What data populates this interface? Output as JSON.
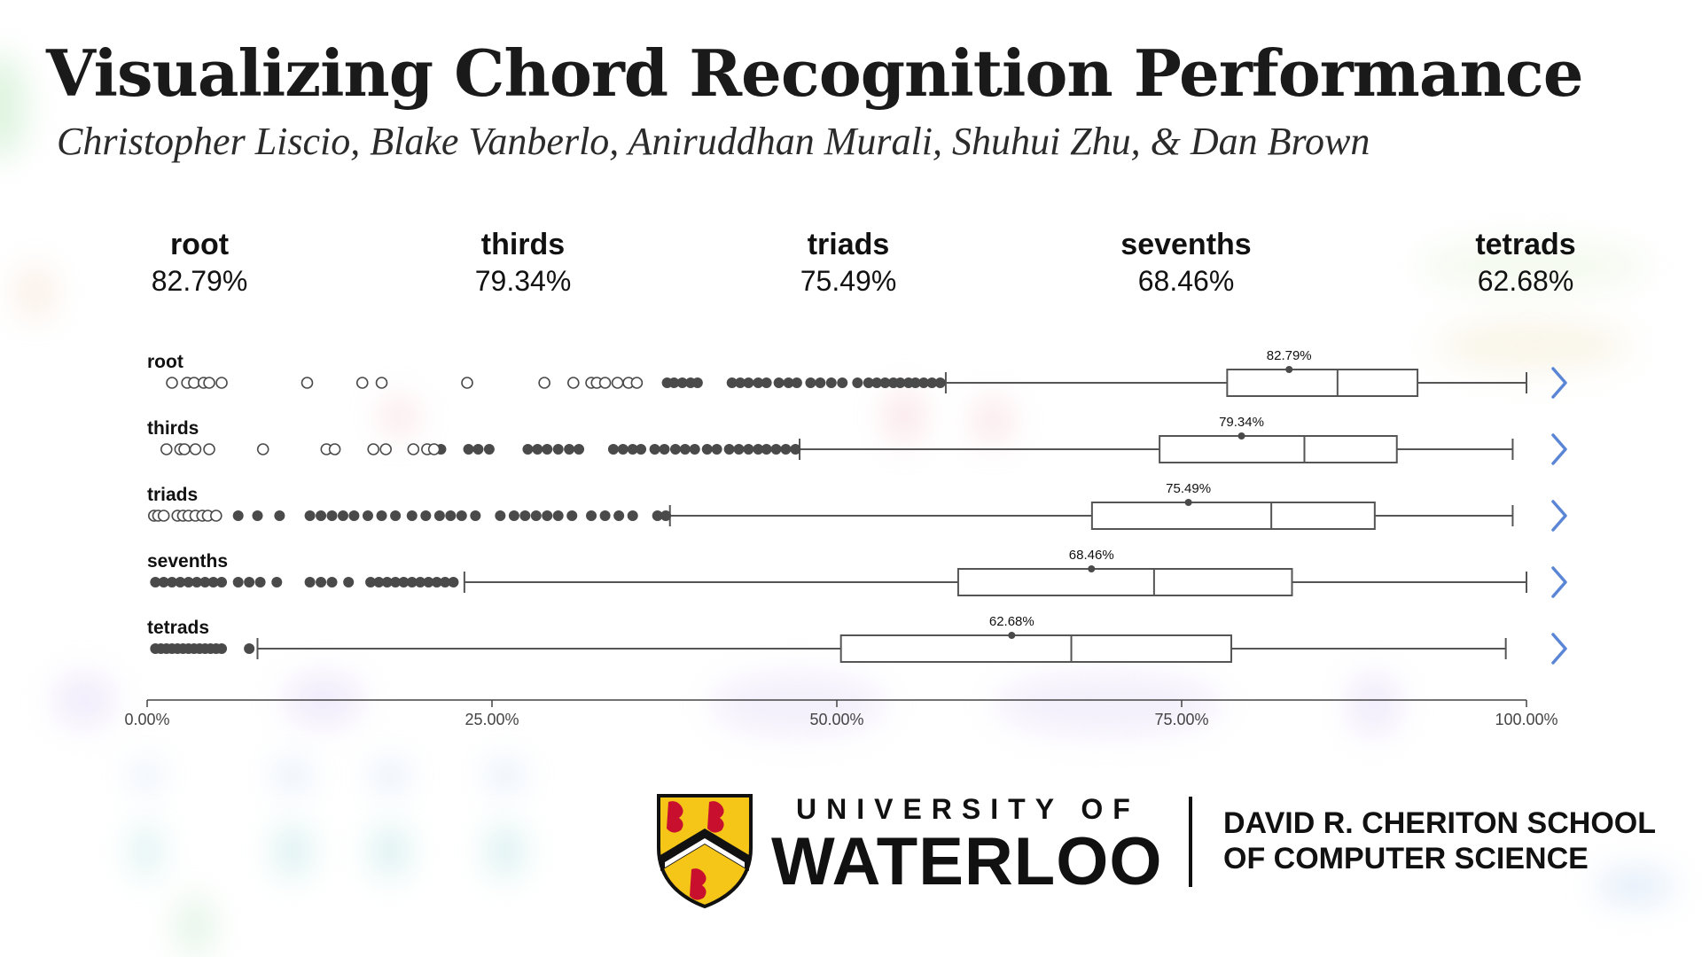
{
  "header": {
    "title": "Visualizing Chord Recognition Performance",
    "authors": "Christopher Liscio, Blake Vanberlo, Aniruddhan Murali, Shuhui Zhu, & Dan Brown"
  },
  "summary_metrics": [
    {
      "name": "root",
      "value": "82.79%"
    },
    {
      "name": "thirds",
      "value": "79.34%"
    },
    {
      "name": "triads",
      "value": "75.49%"
    },
    {
      "name": "sevenths",
      "value": "68.46%"
    },
    {
      "name": "tetrads",
      "value": "62.68%"
    }
  ],
  "chart_data": {
    "type": "boxplot",
    "orientation": "horizontal",
    "xlim": [
      0,
      100
    ],
    "x_ticks": [
      0,
      25,
      50,
      75,
      100
    ],
    "x_tick_labels": [
      "0.00%",
      "25.00%",
      "50.00%",
      "75.00%",
      "100.00%"
    ],
    "series": [
      {
        "name": "root",
        "mean": 82.79,
        "mean_label": "82.79%",
        "q1": 78.3,
        "median": 86.3,
        "q3": 92.1,
        "whisker_low": 57.9,
        "whisker_high": 100,
        "outliers_hollow": [
          1.8,
          2.9,
          3.4,
          4.1,
          4.5,
          5.4,
          11.6,
          15.6,
          17.0,
          23.2,
          28.8,
          30.9,
          32.2,
          32.6,
          33.2,
          34.1,
          34.9,
          35.5
        ],
        "outliers_filled": [
          37.7,
          38.2,
          38.8,
          39.4,
          39.9,
          42.4,
          43.0,
          43.6,
          44.3,
          44.9,
          45.8,
          46.5,
          47.1,
          48.1,
          48.8,
          49.6,
          50.4,
          51.5,
          52.3,
          52.9,
          53.5,
          54.1,
          54.6,
          55.2,
          55.7,
          56.3,
          56.9,
          57.5
        ]
      },
      {
        "name": "thirds",
        "mean": 79.34,
        "mean_label": "79.34%",
        "q1": 73.4,
        "median": 83.9,
        "q3": 90.6,
        "whisker_low": 47.3,
        "whisker_high": 99.0,
        "outliers_hollow": [
          1.4,
          2.4,
          2.7,
          3.5,
          4.5,
          8.4,
          13.0,
          13.6,
          16.4,
          17.3,
          19.3,
          20.3,
          20.8
        ],
        "outliers_filled": [
          21.3,
          23.3,
          24.0,
          24.8,
          27.6,
          28.3,
          29.0,
          29.8,
          30.6,
          31.3,
          33.8,
          34.5,
          35.2,
          35.8,
          36.8,
          37.5,
          38.3,
          39.0,
          39.7,
          40.6,
          41.3,
          42.2,
          42.9,
          43.6,
          44.3,
          44.9,
          45.6,
          46.3,
          47.0
        ]
      },
      {
        "name": "triads",
        "mean": 75.49,
        "mean_label": "75.49%",
        "q1": 68.5,
        "median": 81.5,
        "q3": 89.0,
        "whisker_low": 37.9,
        "whisker_high": 99.0,
        "outliers_hollow": [
          0.5,
          0.8,
          1.2,
          2.2,
          2.6,
          3.0,
          3.5,
          4.0,
          4.4,
          5.0
        ],
        "outliers_filled": [
          6.6,
          8.0,
          9.6,
          11.8,
          12.6,
          13.4,
          14.2,
          15.0,
          16.0,
          17.0,
          18.0,
          19.2,
          20.2,
          21.2,
          22.0,
          22.8,
          23.8,
          25.6,
          26.6,
          27.4,
          28.2,
          29.0,
          29.8,
          30.8,
          32.2,
          33.2,
          34.2,
          35.2,
          37.0,
          37.6
        ]
      },
      {
        "name": "sevenths",
        "mean": 68.46,
        "mean_label": "68.46%",
        "q1": 58.8,
        "median": 73.0,
        "q3": 83.0,
        "whisker_low": 23.0,
        "whisker_high": 100,
        "outliers_hollow": [],
        "outliers_filled": [
          0.6,
          1.2,
          1.8,
          2.4,
          3.0,
          3.6,
          4.2,
          4.8,
          5.4,
          6.6,
          7.4,
          8.2,
          9.4,
          11.8,
          12.6,
          13.4,
          14.6,
          16.2,
          16.8,
          17.4,
          18.0,
          18.6,
          19.2,
          19.8,
          20.4,
          21.0,
          21.6,
          22.2
        ]
      },
      {
        "name": "tetrads",
        "mean": 62.68,
        "mean_label": "62.68%",
        "q1": 50.3,
        "median": 67.0,
        "q3": 78.6,
        "whisker_low": 8.0,
        "whisker_high": 98.5,
        "outliers_hollow": [],
        "outliers_filled": [
          0.6,
          1.0,
          1.4,
          1.8,
          2.2,
          2.6,
          3.0,
          3.4,
          3.8,
          4.2,
          4.6,
          5.0,
          5.4,
          7.4
        ]
      }
    ],
    "grid": false
  },
  "colors": {
    "box_stroke": "#555555",
    "marker": "#4a4a4a",
    "chevron": "#5b86d6",
    "shield_gold": "#f5c518",
    "shield_red": "#c8102e"
  },
  "icons": {
    "row_expand": "chevron-right-icon"
  },
  "logo": {
    "university_line1": "UNIVERSITY OF",
    "university_line2": "WATERLOO",
    "school_line1": "DAVID R. CHERITON SCHOOL",
    "school_line2": "OF COMPUTER SCIENCE"
  }
}
